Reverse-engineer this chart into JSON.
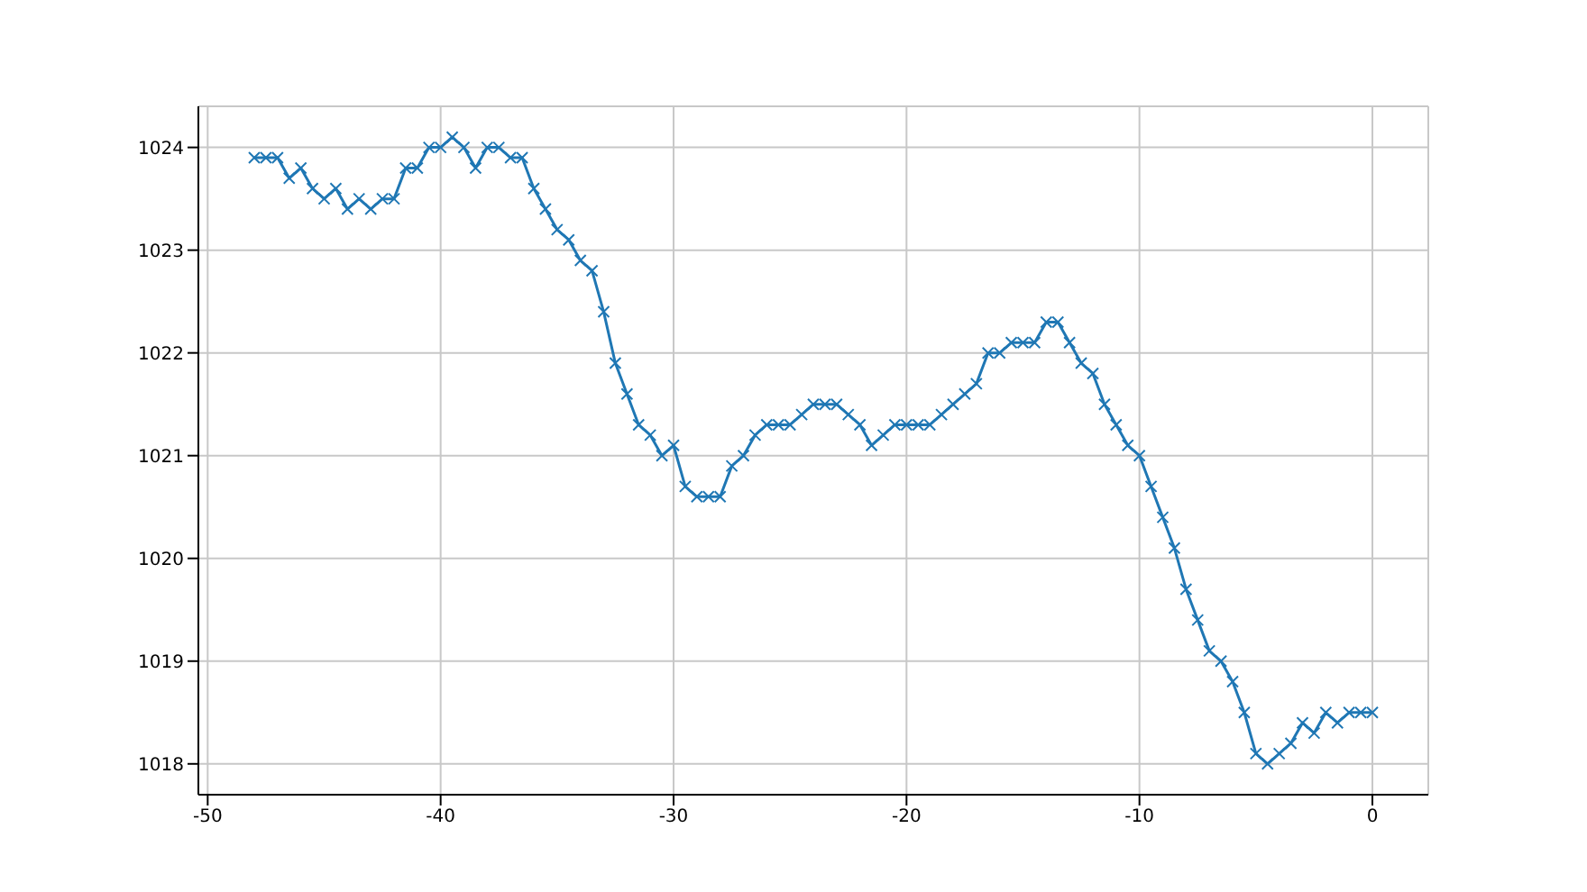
{
  "chart_data": {
    "type": "line",
    "x": [
      -48,
      -47.5,
      -47,
      -46.5,
      -46,
      -45.5,
      -45,
      -44.5,
      -44,
      -43.5,
      -43,
      -42.5,
      -42,
      -41.5,
      -41,
      -40.5,
      -40,
      -39.5,
      -39,
      -38.5,
      -38,
      -37.5,
      -37,
      -36.5,
      -36,
      -35.5,
      -35,
      -34.5,
      -34,
      -33.5,
      -33,
      -32.5,
      -32,
      -31.5,
      -31,
      -30.5,
      -30,
      -29.5,
      -29,
      -28.5,
      -28,
      -27.5,
      -27,
      -26.5,
      -26,
      -25.5,
      -25,
      -24.5,
      -24,
      -23.5,
      -23,
      -22.5,
      -22,
      -21.5,
      -21,
      -20.5,
      -20,
      -19.5,
      -19,
      -18.5,
      -18,
      -17.5,
      -17,
      -16.5,
      -16,
      -15.5,
      -15,
      -14.5,
      -14,
      -13.5,
      -13,
      -12.5,
      -12,
      -11.5,
      -11,
      -10.5,
      -10,
      -9.5,
      -9,
      -8.5,
      -8,
      -7.5,
      -7,
      -6.5,
      -6,
      -5.5,
      -5,
      -4.5,
      -4,
      -3.5,
      -3,
      -2.5,
      -2,
      -1.5,
      -1,
      -0.5,
      0
    ],
    "series": [
      {
        "color": "#1f77b4",
        "values": [
          1023.9,
          1023.9,
          1023.9,
          1023.7,
          1023.8,
          1023.6,
          1023.5,
          1023.6,
          1023.4,
          1023.5,
          1023.4,
          1023.5,
          1023.5,
          1023.8,
          1023.8,
          1024.0,
          1024.0,
          1024.1,
          1024.0,
          1023.8,
          1024.0,
          1024.0,
          1023.9,
          1023.9,
          1023.6,
          1023.4,
          1023.2,
          1023.1,
          1022.9,
          1022.8,
          1022.4,
          1021.9,
          1021.6,
          1021.3,
          1021.2,
          1021.0,
          1021.1,
          1020.7,
          1020.6,
          1020.6,
          1020.6,
          1020.9,
          1021.0,
          1021.2,
          1021.3,
          1021.3,
          1021.3,
          1021.4,
          1021.5,
          1021.5,
          1021.5,
          1021.4,
          1021.3,
          1021.1,
          1021.2,
          1021.3,
          1021.3,
          1021.3,
          1021.3,
          1021.4,
          1021.5,
          1021.6,
          1021.7,
          1022.0,
          1022.0,
          1022.1,
          1022.1,
          1022.1,
          1022.3,
          1022.3,
          1022.1,
          1021.9,
          1021.8,
          1021.5,
          1021.3,
          1021.1,
          1021.0,
          1020.7,
          1020.4,
          1020.1,
          1019.7,
          1019.4,
          1019.1,
          1019.0,
          1018.8,
          1018.5,
          1018.1,
          1018.0,
          1018.1,
          1018.2,
          1018.4,
          1018.3,
          1018.5,
          1018.4,
          1018.5,
          1018.5,
          1018.5
        ]
      }
    ],
    "xlim": [
      -50.4,
      2.4
    ],
    "ylim": [
      1017.7,
      1024.4
    ],
    "xticks": [
      -50,
      -40,
      -30,
      -20,
      -10,
      0
    ],
    "yticks": [
      1018,
      1019,
      1020,
      1021,
      1022,
      1023,
      1024
    ],
    "grid": true,
    "marker": "cross",
    "line_style": "solid"
  }
}
